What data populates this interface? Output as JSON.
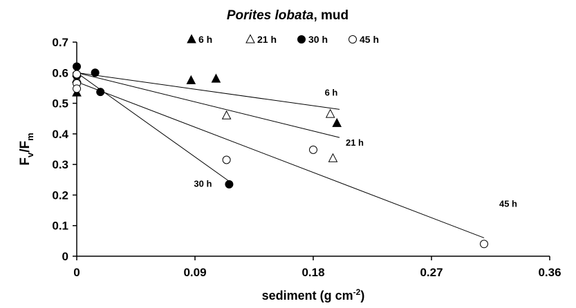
{
  "chart_data": {
    "type": "scatter",
    "title": [
      "Porites lobata",
      ", mud"
    ],
    "x_label": [
      "sediment (g cm",
      "-2",
      ")"
    ],
    "y_label": [
      "F",
      "v",
      "/F",
      "m"
    ],
    "xlim": [
      0,
      0.36
    ],
    "xticks": [
      0,
      0.09,
      0.18,
      0.27,
      0.36
    ],
    "ylim": [
      0,
      0.7
    ],
    "yticks": [
      0,
      0.1,
      0.2,
      0.3,
      0.4,
      0.5,
      0.6,
      0.7
    ],
    "grid": false,
    "legend": "top",
    "series": [
      {
        "name": "6 h",
        "color": "#000000",
        "marker": "triangle",
        "filled": true,
        "x": [
          0,
          0,
          0.087,
          0.106,
          0.198
        ],
        "values": [
          0.535,
          0.58,
          0.575,
          0.58,
          0.435
        ],
        "fit": [
          [
            0,
            0.6
          ],
          [
            0.2,
            0.48
          ]
        ]
      },
      {
        "name": "21 h",
        "color": "#000000",
        "marker": "triangle",
        "filled": false,
        "x": [
          0,
          0,
          0.114,
          0.193,
          0.195
        ],
        "values": [
          0.6,
          0.58,
          0.46,
          0.465,
          0.32
        ],
        "fit": [
          [
            0,
            0.6
          ],
          [
            0.2,
            0.388
          ]
        ]
      },
      {
        "name": "30 h",
        "color": "#000000",
        "marker": "circle",
        "filled": true,
        "x": [
          0,
          0,
          0.014,
          0.018,
          0.116
        ],
        "values": [
          0.62,
          0.59,
          0.6,
          0.537,
          0.235
        ],
        "fit": [
          [
            0,
            0.6
          ],
          [
            0.116,
            0.245
          ]
        ]
      },
      {
        "name": "45 h",
        "color": "#000000",
        "marker": "circle",
        "filled": false,
        "x": [
          0,
          0,
          0,
          0.114,
          0.18,
          0.31
        ],
        "values": [
          0.595,
          0.565,
          0.548,
          0.315,
          0.348,
          0.04
        ],
        "fit": [
          [
            0,
            0.57
          ],
          [
            0.31,
            0.06
          ]
        ]
      }
    ]
  }
}
